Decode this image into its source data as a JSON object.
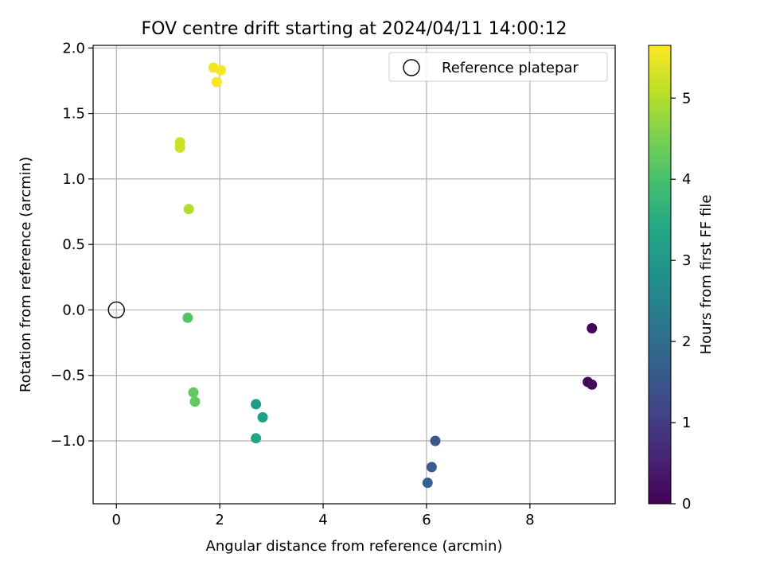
{
  "chart_data": {
    "type": "scatter",
    "title": "FOV centre drift starting at 2024/04/11 14:00:12",
    "xlabel": "Angular distance from reference (arcmin)",
    "ylabel": "Rotation from reference (arcmin)",
    "xlim": [
      -0.45,
      9.65
    ],
    "ylim": [
      -1.48,
      2.02
    ],
    "xticks": [
      0,
      2,
      4,
      6,
      8
    ],
    "xtick_labels": [
      "0",
      "2",
      "4",
      "6",
      "8"
    ],
    "yticks": [
      -1.0,
      -0.5,
      0.0,
      0.5,
      1.0,
      1.5,
      2.0
    ],
    "ytick_labels": [
      "−1.0",
      "−0.5",
      "0.0",
      "0.5",
      "1.0",
      "1.5",
      "2.0"
    ],
    "grid": true,
    "legend": {
      "placement": "top-right",
      "entries": [
        "Reference platepar"
      ]
    },
    "reference_point": {
      "name": "Reference platepar",
      "x": 0.0,
      "y": 0.0
    },
    "colorbar": {
      "label": "Hours from first FF file",
      "range": [
        0,
        5.65
      ],
      "ticks": [
        0,
        1,
        2,
        3,
        4,
        5
      ],
      "tick_labels": [
        "0",
        "1",
        "2",
        "3",
        "4",
        "5"
      ],
      "colormap": "viridis"
    },
    "points": [
      {
        "x": 9.2,
        "y": -0.14,
        "c": 0.05
      },
      {
        "x": 9.12,
        "y": -0.55,
        "c": 0.08
      },
      {
        "x": 9.2,
        "y": -0.57,
        "c": 0.12
      },
      {
        "x": 6.17,
        "y": -1.0,
        "c": 1.55
      },
      {
        "x": 6.1,
        "y": -1.2,
        "c": 1.65
      },
      {
        "x": 6.02,
        "y": -1.32,
        "c": 1.75
      },
      {
        "x": 2.7,
        "y": -0.72,
        "c": 3.1
      },
      {
        "x": 2.83,
        "y": -0.82,
        "c": 3.2
      },
      {
        "x": 2.7,
        "y": -0.98,
        "c": 3.3
      },
      {
        "x": 1.38,
        "y": -0.06,
        "c": 4.1
      },
      {
        "x": 1.49,
        "y": -0.63,
        "c": 4.25
      },
      {
        "x": 1.52,
        "y": -0.7,
        "c": 4.3
      },
      {
        "x": 1.4,
        "y": 0.77,
        "c": 5.0
      },
      {
        "x": 1.23,
        "y": 1.28,
        "c": 5.2
      },
      {
        "x": 1.23,
        "y": 1.24,
        "c": 5.22
      },
      {
        "x": 1.88,
        "y": 1.85,
        "c": 5.55
      },
      {
        "x": 2.02,
        "y": 1.83,
        "c": 5.58
      },
      {
        "x": 1.94,
        "y": 1.74,
        "c": 5.6
      }
    ]
  }
}
